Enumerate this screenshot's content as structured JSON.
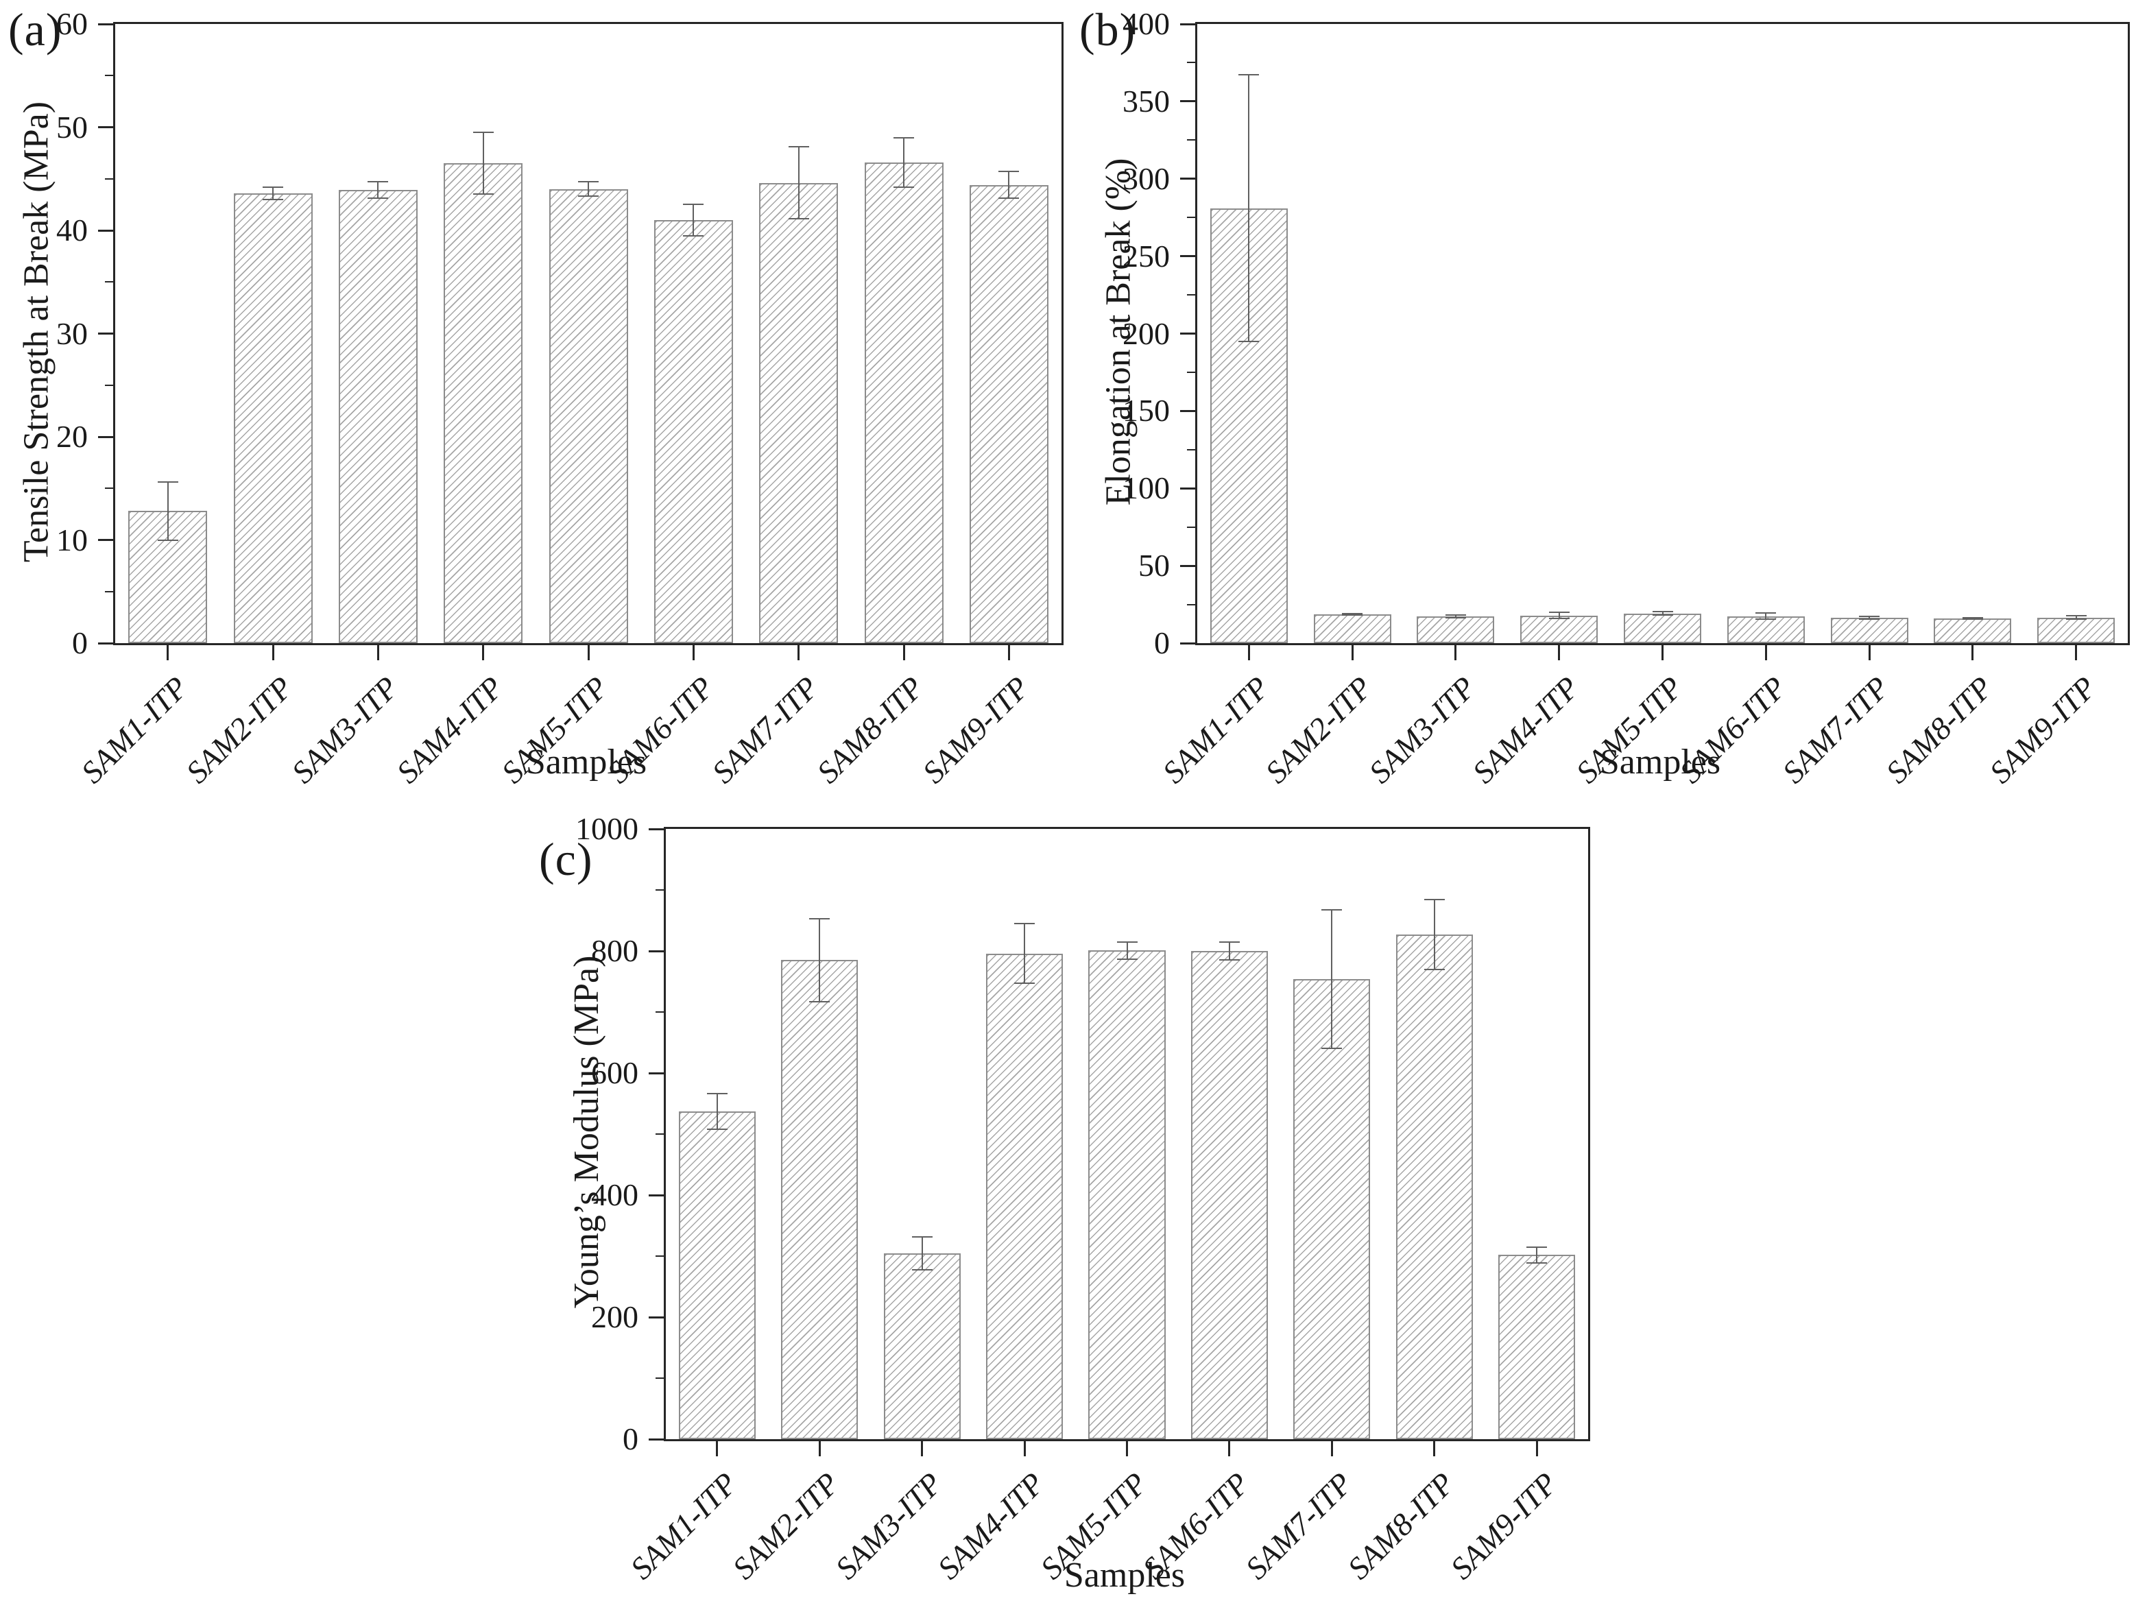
{
  "figure": {
    "background": "#ffffff",
    "text_color": "#1a1a1a",
    "axis_color": "#262626",
    "bar_edge_color": "#8c8c8c",
    "bar_hatch_color": "#a6a6a6",
    "error_bar_color": "#606060"
  },
  "chart_data": [
    {
      "panel_label": "(a)",
      "type": "bar",
      "title": "",
      "xlabel": "Samples",
      "ylabel": "Tensile Strength at Break (MPa)",
      "ylim": [
        0,
        60
      ],
      "yticks": [
        0,
        10,
        20,
        30,
        40,
        50,
        60
      ],
      "minor_tick_step": 5,
      "grid": false,
      "legend": "none",
      "bar_fill": "diagonal-hatch",
      "categories": [
        "SAM1-ITP",
        "SAM2-ITP",
        "SAM3-ITP",
        "SAM4-ITP",
        "SAM5-ITP",
        "SAM6-ITP",
        "SAM7-ITP",
        "SAM8-ITP",
        "SAM9-ITP"
      ],
      "values": [
        12.8,
        43.6,
        43.9,
        46.5,
        44.0,
        41.0,
        44.6,
        46.6,
        44.4
      ],
      "errors": [
        2.8,
        0.6,
        0.8,
        3.0,
        0.7,
        1.5,
        3.5,
        2.4,
        1.3
      ]
    },
    {
      "panel_label": "(b)",
      "type": "bar",
      "title": "",
      "xlabel": "Samples",
      "ylabel": "Elongation at Break (%)",
      "ylim": [
        0,
        400
      ],
      "yticks": [
        0,
        50,
        100,
        150,
        200,
        250,
        300,
        350,
        400
      ],
      "minor_tick_step": 25,
      "grid": false,
      "legend": "none",
      "bar_fill": "diagonal-hatch",
      "categories": [
        "SAM1-ITP",
        "SAM2-ITP",
        "SAM3-ITP",
        "SAM4-ITP",
        "SAM5-ITP",
        "SAM6-ITP",
        "SAM7-ITP",
        "SAM8-ITP",
        "SAM9-ITP"
      ],
      "values": [
        281,
        18.6,
        17.1,
        17.9,
        19.1,
        17.4,
        16.3,
        15.8,
        16.6
      ],
      "errors": [
        86,
        0.6,
        0.9,
        2.0,
        1.1,
        1.9,
        0.8,
        0.4,
        1.0
      ]
    },
    {
      "panel_label": "(c)",
      "type": "bar",
      "title": "",
      "xlabel": "Samples",
      "ylabel": "Young’s Modulus (MPa)",
      "ylim": [
        0,
        1000
      ],
      "yticks": [
        0,
        200,
        400,
        600,
        800,
        1000
      ],
      "minor_tick_step": 100,
      "grid": false,
      "legend": "none",
      "bar_fill": "diagonal-hatch",
      "categories": [
        "SAM1-ITP",
        "SAM2-ITP",
        "SAM3-ITP",
        "SAM4-ITP",
        "SAM5-ITP",
        "SAM6-ITP",
        "SAM7-ITP",
        "SAM8-ITP",
        "SAM9-ITP"
      ],
      "values": [
        537,
        785,
        305,
        796,
        801,
        800,
        754,
        827,
        302
      ],
      "errors": [
        29,
        68,
        27,
        49,
        14,
        15,
        113,
        57,
        13
      ]
    }
  ]
}
